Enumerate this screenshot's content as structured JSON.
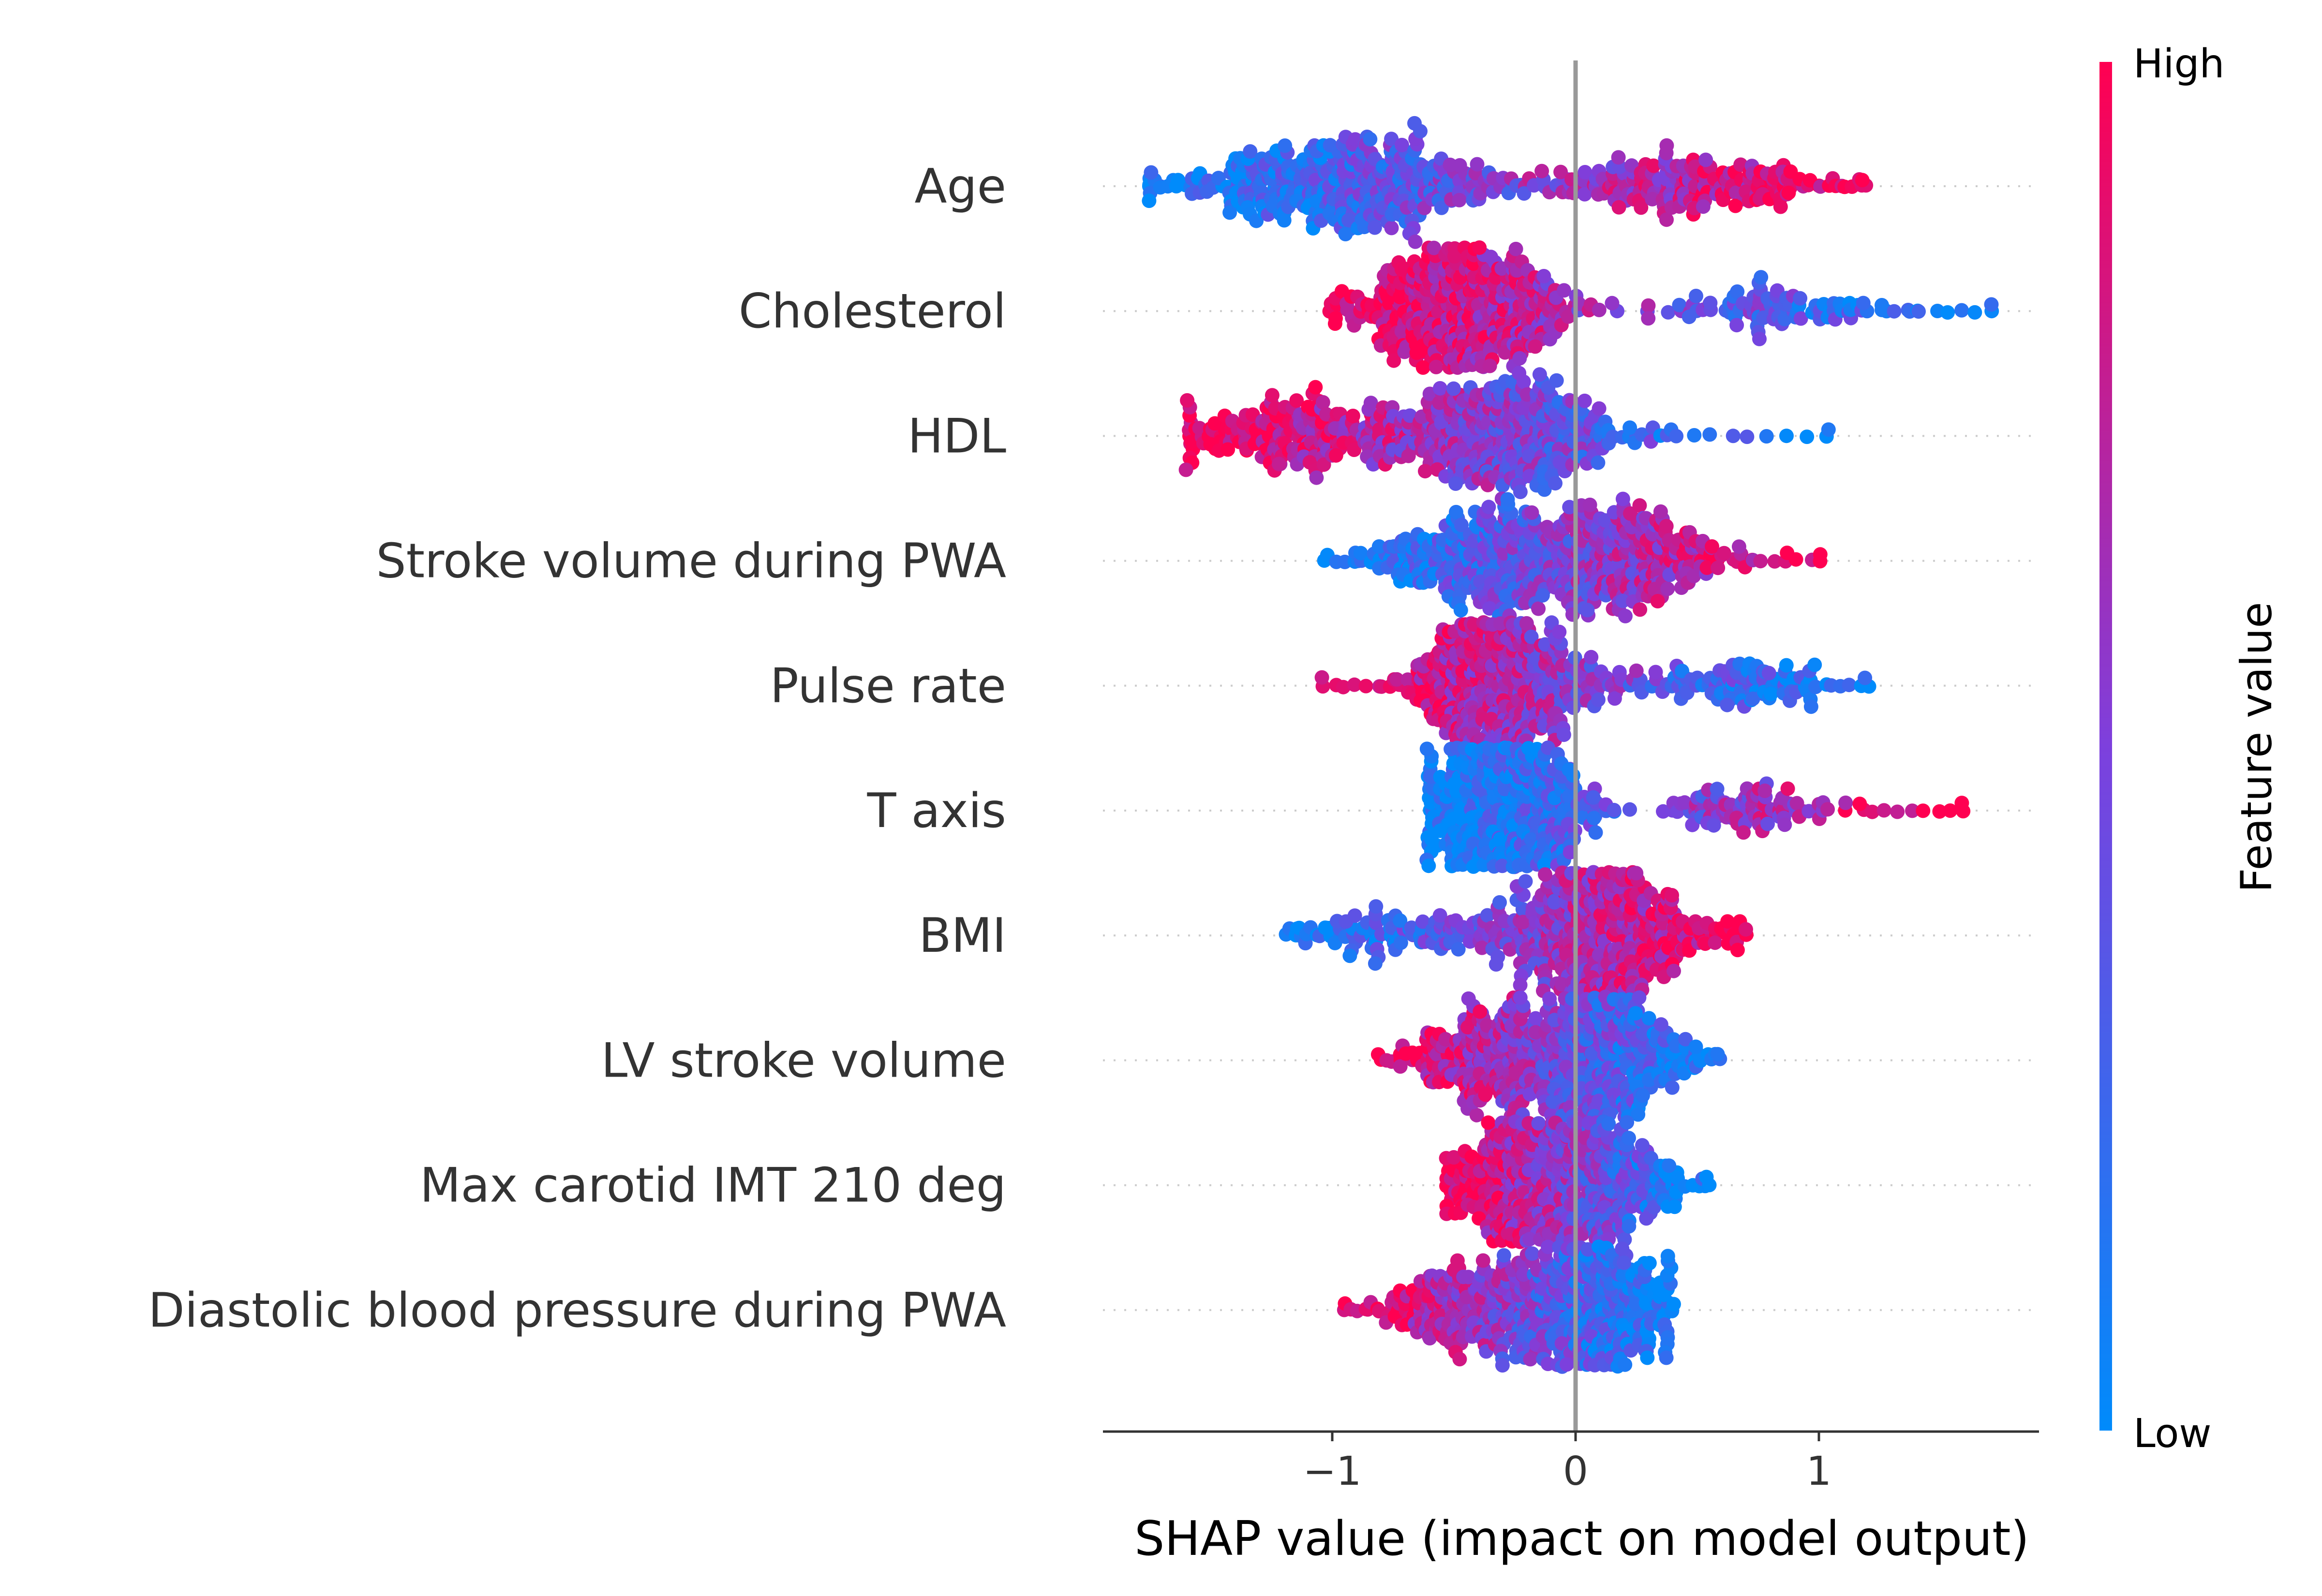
{
  "chart_data": {
    "type": "scatter",
    "subtype": "shap-beeswarm",
    "title": "",
    "xlabel": "SHAP value (impact on model output)",
    "xticks": [
      {
        "value": -1,
        "label": "−1"
      },
      {
        "value": 0,
        "label": "0"
      },
      {
        "value": 1,
        "label": "1"
      }
    ],
    "xlim": [
      -1.93,
      1.9
    ],
    "zero_line": 0,
    "colorbar": {
      "title": "Feature value",
      "high_label": "High",
      "low_label": "Low",
      "low_color": "#008bfb",
      "high_color": "#ff0051"
    },
    "features": [
      {
        "name": "Age",
        "min": -1.76,
        "max": 1.19,
        "left_mass": 0.9,
        "right_mass": 0.45,
        "lo_center": -0.95,
        "hi_center": 0.45,
        "spread": 0.32,
        "trend": 1
      },
      {
        "name": "Cholesterol",
        "min": -1.0,
        "max": 1.71,
        "left_mass": 1.0,
        "right_mass": 0.18,
        "lo_center": -0.45,
        "hi_center": 0.75,
        "spread": 0.22,
        "trend": -1
      },
      {
        "name": "HDL",
        "min": -1.6,
        "max": 1.03,
        "left_mass": 0.45,
        "right_mass": 0.85,
        "lo_center": -1.1,
        "hi_center": -0.28,
        "spread": 0.26,
        "trend": -1
      },
      {
        "name": "Stroke volume during PWA",
        "min": -1.03,
        "max": 1.01,
        "left_mass": 0.8,
        "right_mass": 0.85,
        "lo_center": -0.4,
        "hi_center": 0.2,
        "spread": 0.2,
        "trend": 1
      },
      {
        "name": "Pulse rate",
        "min": -1.03,
        "max": 1.2,
        "left_mass": 0.95,
        "right_mass": 0.2,
        "lo_center": -0.3,
        "hi_center": 0.6,
        "spread": 0.2,
        "trend": -1
      },
      {
        "name": "T axis",
        "min": -0.62,
        "max": 1.6,
        "left_mass": 1.0,
        "right_mass": 0.18,
        "lo_center": -0.3,
        "hi_center": 0.7,
        "spread": 0.18,
        "trend": 1
      },
      {
        "name": "BMI",
        "min": -1.18,
        "max": 0.69,
        "left_mass": 0.18,
        "right_mass": 1.0,
        "lo_center": -0.7,
        "hi_center": 0.1,
        "spread": 0.22,
        "trend": 1
      },
      {
        "name": "LV stroke volume",
        "min": -0.8,
        "max": 0.59,
        "left_mass": 0.55,
        "right_mass": 0.9,
        "lo_center": -0.35,
        "hi_center": 0.12,
        "spread": 0.17,
        "trend": -1
      },
      {
        "name": "Max carotid IMT 210 deg",
        "min": -0.54,
        "max": 0.55,
        "left_mass": 0.8,
        "right_mass": 0.7,
        "lo_center": -0.22,
        "hi_center": 0.12,
        "spread": 0.14,
        "trend": -1
      },
      {
        "name": "Diastolic blood pressure during PWA",
        "min": -0.95,
        "max": 0.4,
        "left_mass": 0.5,
        "right_mass": 1.0,
        "lo_center": -0.45,
        "hi_center": 0.05,
        "spread": 0.18,
        "trend": -1
      }
    ]
  }
}
